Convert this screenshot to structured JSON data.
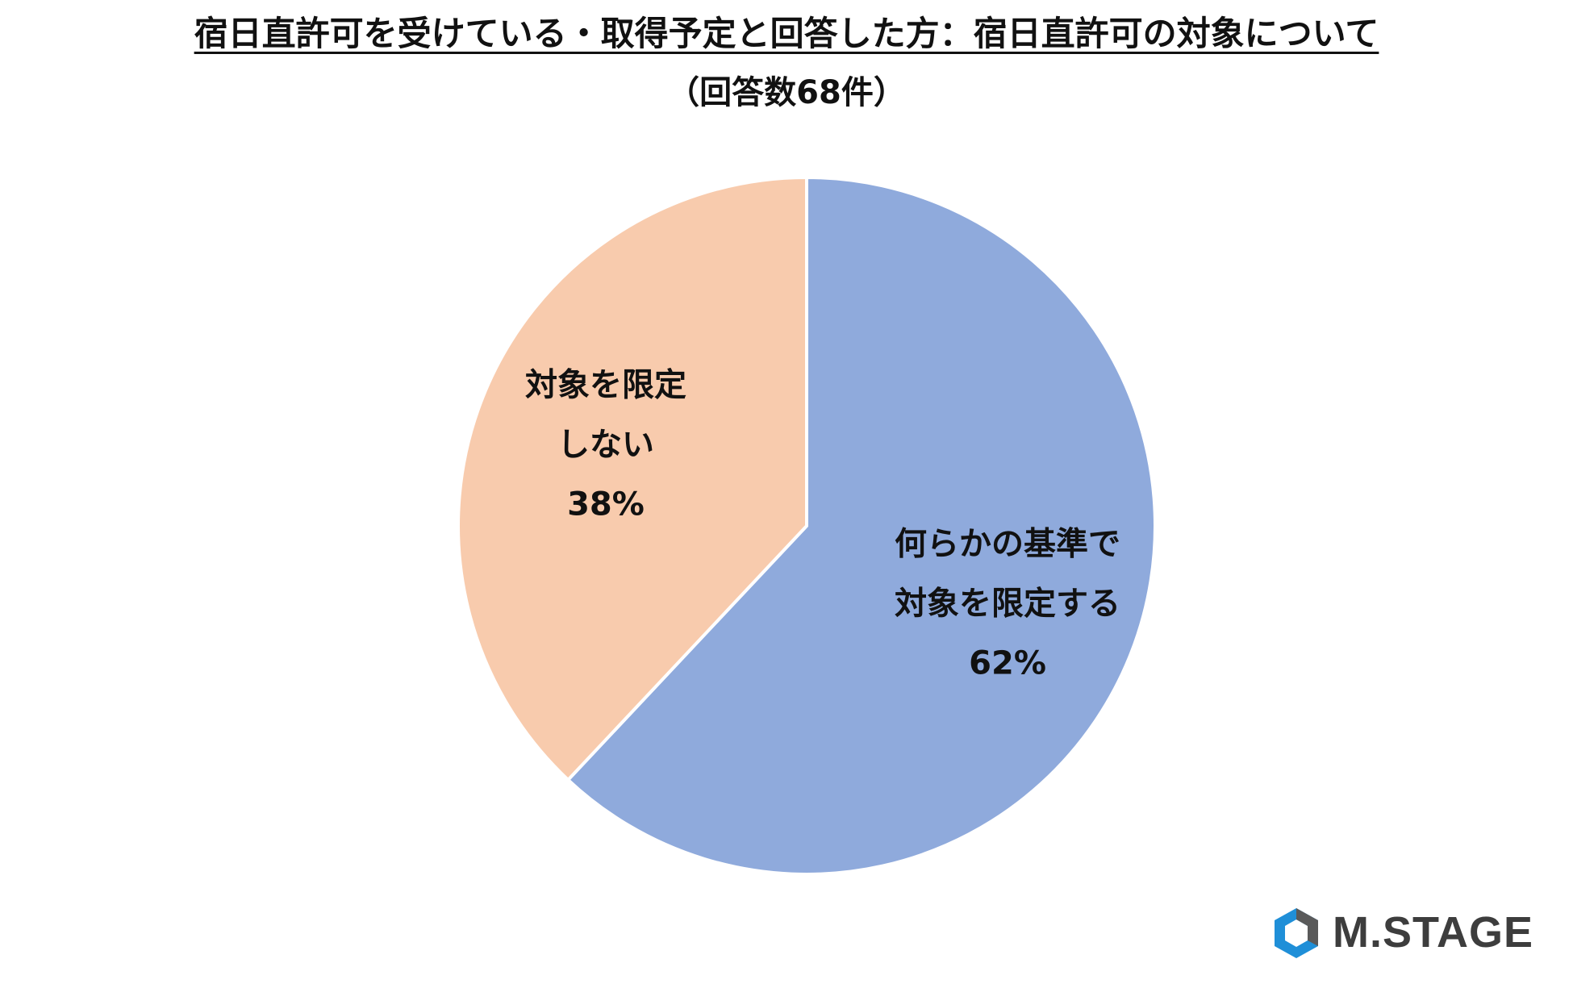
{
  "header": {
    "title": "宿日直許可を受けている・取得予定と回答した方：宿日直許可の対象について",
    "subtitle": "（回答数68件）"
  },
  "chart_data": {
    "type": "pie",
    "start_angle_deg": 0,
    "direction": "clockwise",
    "slices": [
      {
        "label_lines": [
          "何らかの基準で",
          "対象を限定する"
        ],
        "value": 62,
        "value_label": "62%",
        "color": "#8faadc"
      },
      {
        "label_lines": [
          "対象を限定",
          "しない"
        ],
        "value": 38,
        "value_label": "38%",
        "color": "#f8cbad"
      }
    ]
  },
  "colors": {
    "slice_border": "#ffffff",
    "logo_primary": "#1f8fd8",
    "logo_secondary": "#5a5a5a"
  },
  "logo": {
    "text": "M.STAGE",
    "icon": "hexagon-logo-icon"
  }
}
